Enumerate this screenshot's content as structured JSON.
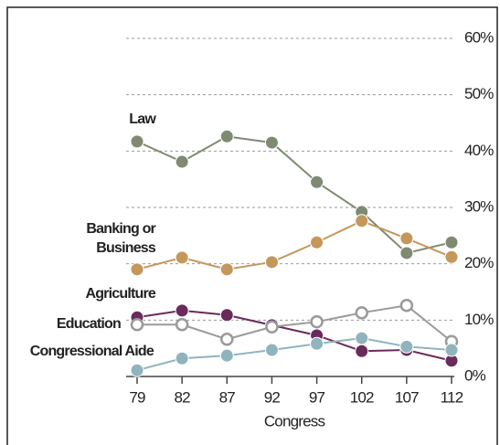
{
  "chart_data": {
    "type": "line",
    "x_label": "Congress",
    "categories": [
      "79",
      "82",
      "87",
      "92",
      "97",
      "102",
      "107",
      "112"
    ],
    "series": [
      {
        "name": "Law",
        "color": "#7f8a72",
        "values": [
          41.7,
          38.1,
          42.6,
          41.5,
          34.5,
          29.2,
          21.9,
          23.8
        ]
      },
      {
        "name": "Banking or Business",
        "color": "#c4975a",
        "values": [
          19.0,
          21.1,
          19.0,
          20.3,
          23.8,
          27.6,
          24.5,
          21.2
        ]
      },
      {
        "name": "Agriculture",
        "color": "#6b2a5c",
        "values": [
          10.5,
          11.7,
          10.9,
          9.1,
          7.3,
          4.5,
          4.7,
          2.8
        ]
      },
      {
        "name": "Education",
        "color": "#9a9a9a",
        "hollow": true,
        "values": [
          9.2,
          9.2,
          6.6,
          8.8,
          9.7,
          11.3,
          12.6,
          6.2
        ]
      },
      {
        "name": "Congressional Aide",
        "color": "#8fb4be",
        "values": [
          1.1,
          3.2,
          3.7,
          4.7,
          5.8,
          6.8,
          5.3,
          4.7
        ]
      }
    ],
    "ylim": [
      0,
      60
    ],
    "yticks": [
      {
        "value": 0,
        "label": "0%"
      },
      {
        "value": 10,
        "label": "10%"
      },
      {
        "value": 20,
        "label": "20%"
      },
      {
        "value": 30,
        "label": "30%"
      },
      {
        "value": 40,
        "label": "40%"
      },
      {
        "value": 50,
        "label": "50%"
      },
      {
        "value": 60,
        "label": "60%"
      }
    ],
    "grid": true
  }
}
